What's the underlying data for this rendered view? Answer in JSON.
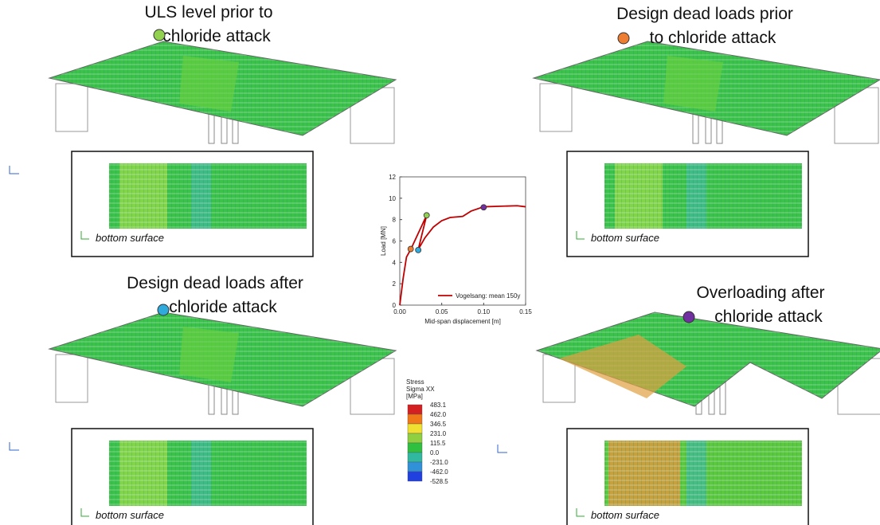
{
  "panels": [
    {
      "title_lines": [
        "ULS level prior to",
        "chloride attack"
      ],
      "marker_color": "#92d050",
      "caption": "bottom surface"
    },
    {
      "title_lines": [
        "Design dead loads prior",
        "to chloride attack"
      ],
      "marker_color": "#ed7d31",
      "caption": "bottom surface"
    },
    {
      "title_lines": [
        "Design dead loads after",
        "chloride attack"
      ],
      "marker_color": "#2eaadc",
      "caption": "bottom surface"
    },
    {
      "title_lines": [
        "Overloading after",
        "chloride attack"
      ],
      "marker_color": "#7030a0",
      "caption": "bottom surface"
    }
  ],
  "chart_data": {
    "type": "line",
    "x_label": "Mid-span displacement [m]",
    "y_label": "Load [MN]",
    "xlim": [
      0,
      0.15
    ],
    "xticks": [
      {
        "value": 0,
        "label": "0.00"
      },
      {
        "value": 0.05,
        "label": "0.05"
      },
      {
        "value": 0.1,
        "label": "0.10"
      },
      {
        "value": 0.15,
        "label": "0.15"
      }
    ],
    "ylim": [
      0,
      12
    ],
    "yticks": [
      0,
      2,
      4,
      6,
      8,
      10,
      12
    ],
    "series": [
      {
        "name": "Vogelsang: mean 150y",
        "color": "#c00000",
        "x": [
          0,
          0.004,
          0.008,
          0.013,
          0.032,
          0.022,
          0.03,
          0.04,
          0.05,
          0.06,
          0.075,
          0.085,
          0.1,
          0.12,
          0.14,
          0.15
        ],
        "values": [
          0,
          2.5,
          4.5,
          5.2,
          8.4,
          5.2,
          6.3,
          7.3,
          7.9,
          8.2,
          8.3,
          8.8,
          9.2,
          9.25,
          9.3,
          9.2
        ]
      }
    ],
    "points": {
      "x": [
        0.032,
        0.013,
        0.022,
        0.1
      ],
      "values": [
        8.4,
        5.25,
        5.15,
        9.15
      ],
      "colors": [
        "#92d050",
        "#ed7d31",
        "#2eaadc",
        "#7030a0"
      ]
    }
  },
  "stress_legend": {
    "title_lines": [
      "Stress",
      "Sigma XX",
      "[MPa]"
    ],
    "labels": [
      "483.1",
      "462.0",
      "346.5",
      "231.0",
      "115.5",
      "0.0",
      "-231.0",
      "-462.0",
      "-528.5"
    ],
    "label_colors": [
      "#333333",
      "#2020d0",
      "#333333",
      "#333333",
      "#333333",
      "#2020d0",
      "#333333",
      "#2020d0",
      "#333333"
    ],
    "colors": [
      "#d42020",
      "#f07818",
      "#f0e030",
      "#90d040",
      "#30c040",
      "#30b8a0",
      "#3090d8",
      "#2040e0"
    ]
  }
}
